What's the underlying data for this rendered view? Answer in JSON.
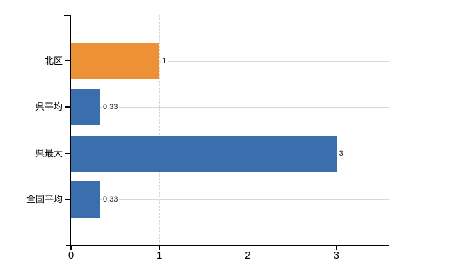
{
  "chart_data": {
    "type": "bar",
    "orientation": "horizontal",
    "title": "",
    "xlabel": "",
    "ylabel": "",
    "categories": [
      "北区",
      "県平均",
      "県最大",
      "全国平均"
    ],
    "values": [
      1,
      0.33,
      3,
      0.33
    ],
    "value_labels": [
      "1",
      "0.33",
      "3",
      "0.33"
    ],
    "bar_colors": [
      "#ED9136",
      "#3A6EAD",
      "#3A6EAD",
      "#3A6EAD"
    ],
    "x_ticks": [
      0,
      1,
      2,
      3
    ],
    "x_tick_labels": [
      "0",
      "1",
      "2",
      "3"
    ],
    "xlim": [
      0,
      3.6
    ],
    "grid": true,
    "legend": false,
    "colors": {
      "background": "#FFFFFF",
      "axis": "#000000",
      "h_gridline": "#D9D9D9",
      "v_gridline": "#D5D5D5",
      "top_border": "#C9C9C9",
      "category_label": "#000000",
      "tick_label": "#000000",
      "value_label": "#222222"
    }
  }
}
